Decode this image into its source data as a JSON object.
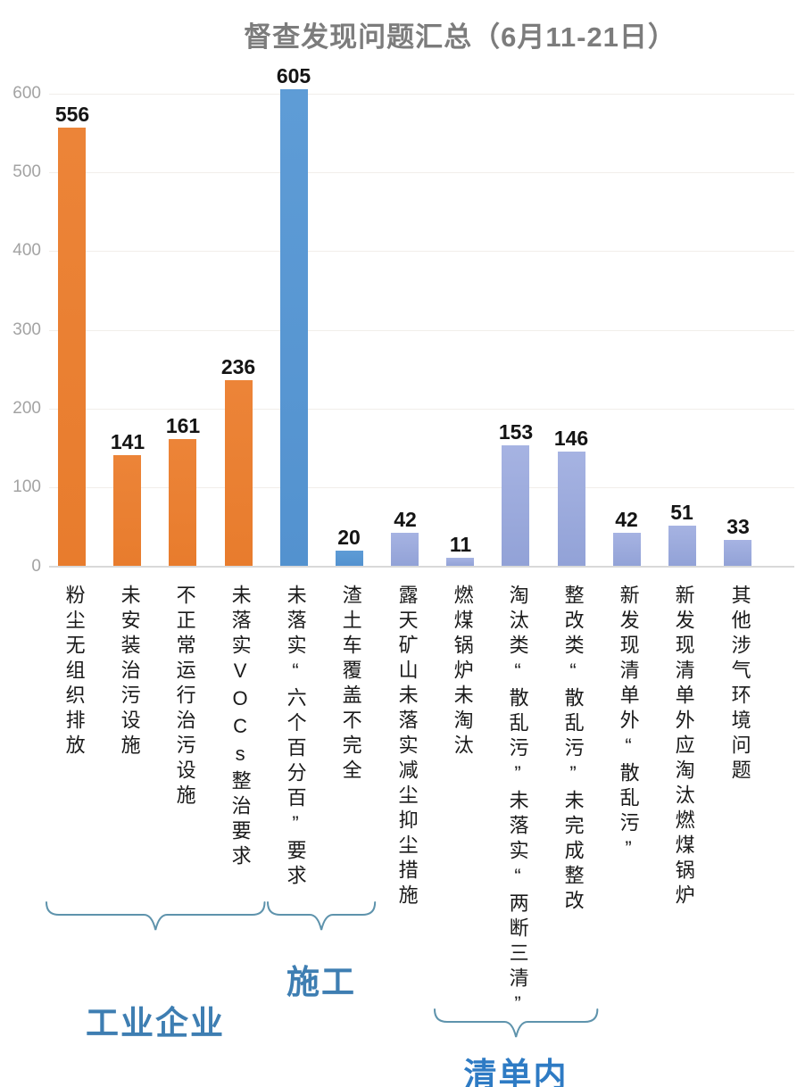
{
  "chart_data": {
    "type": "bar",
    "title": "督查发现问题汇总（6月11-21日）",
    "xlabel": "",
    "ylabel": "",
    "ylim": [
      0,
      600
    ],
    "yticks": [
      0,
      100,
      200,
      300,
      400,
      500,
      600
    ],
    "grid": "faint-horizontal",
    "legend": "none",
    "categories": [
      "粉尘无组织排放",
      "未安装治污设施",
      "不正常运行治污设施",
      "未落实VOCs整治要求",
      "未落实“六个百分百”要求",
      "渣土车覆盖不完全",
      "露天矿山未落实减尘抑尘措施",
      "燃煤锅炉未淘汰",
      "淘汰类“散乱污”未落实“两断三清”",
      "整改类“散乱污”未完成整改",
      "新发现清单外“散乱污”",
      "新发现清单外应淘汰燃煤锅炉",
      "其他涉气环境问题"
    ],
    "values": [
      556,
      141,
      161,
      236,
      605,
      20,
      42,
      11,
      153,
      146,
      42,
      51,
      33
    ],
    "bar_colors": [
      "orange",
      "orange",
      "orange",
      "orange",
      "blue",
      "blue",
      "periwinkle",
      "periwinkle",
      "periwinkle",
      "periwinkle",
      "periwinkle",
      "periwinkle",
      "periwinkle"
    ],
    "palette": {
      "orange": [
        "#EC8438",
        "#E87C2D"
      ],
      "blue": [
        "#5E9CD6",
        "#5392CF"
      ],
      "periwinkle": [
        "#A6B3E2",
        "#92A2D7"
      ]
    },
    "groups": [
      {
        "id": "industrial",
        "label": "工业企业",
        "start": 0,
        "end": 3,
        "color": "#3E7EB2"
      },
      {
        "id": "construction",
        "label": "施工",
        "start": 4,
        "end": 5,
        "color": "#3E7EB2"
      },
      {
        "id": "in-list",
        "label": "清单内",
        "start": 7,
        "end": 9,
        "color": "#2E7BC4"
      }
    ],
    "title_color": "#7C7C7C",
    "axis_color": "#A3A3A3",
    "value_label_color": "#141414",
    "brace_color": "#5E93AC"
  }
}
